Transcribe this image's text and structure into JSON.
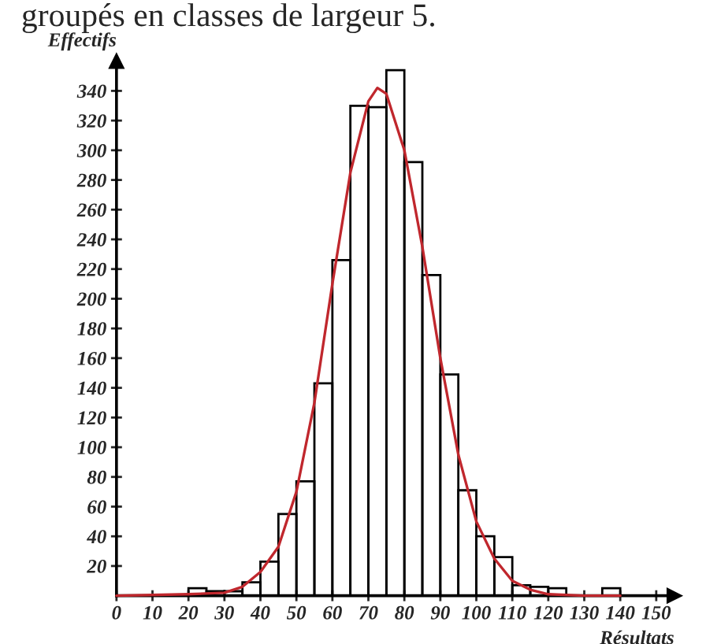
{
  "chart_data": {
    "type": "histogram",
    "title": "groupés en classes de largeur 5.",
    "xlabel": "Résultats",
    "ylabel": "Effectifs",
    "bins": [
      20,
      25,
      30,
      35,
      40,
      45,
      50,
      55,
      60,
      65,
      70,
      75,
      80,
      85,
      90,
      95,
      100,
      105,
      110,
      115,
      120,
      125,
      130,
      135,
      140
    ],
    "series": [
      {
        "color": "#000000",
        "values": [
          5,
          3,
          3,
          9,
          23,
          55,
          77,
          143,
          226,
          330,
          329,
          354,
          292,
          216,
          149,
          71,
          40,
          26,
          7,
          6,
          5,
          0,
          0,
          5
        ]
      },
      {
        "type": "line",
        "color": "#c0272d",
        "x": [
          0,
          20,
          30,
          35,
          40,
          45,
          50,
          55,
          60,
          65,
          70,
          72.5,
          75,
          80,
          85,
          90,
          95,
          100,
          105,
          110,
          115,
          120,
          130,
          140
        ],
        "values": [
          0,
          1,
          2,
          6,
          16,
          33,
          70,
          130,
          210,
          285,
          333,
          342,
          338,
          300,
          235,
          160,
          95,
          50,
          25,
          10,
          4,
          1,
          0,
          0
        ]
      }
    ],
    "xlim": [
      0,
      155
    ],
    "ylim": [
      0,
      360
    ],
    "xticks": [
      0,
      10,
      20,
      30,
      40,
      50,
      60,
      70,
      80,
      90,
      100,
      110,
      120,
      130,
      140,
      150
    ],
    "yticks": [
      20,
      40,
      60,
      80,
      100,
      120,
      140,
      160,
      180,
      200,
      220,
      240,
      260,
      280,
      300,
      320,
      340
    ],
    "grid": false,
    "legend": false,
    "marker": "none",
    "line_style": "solid"
  }
}
